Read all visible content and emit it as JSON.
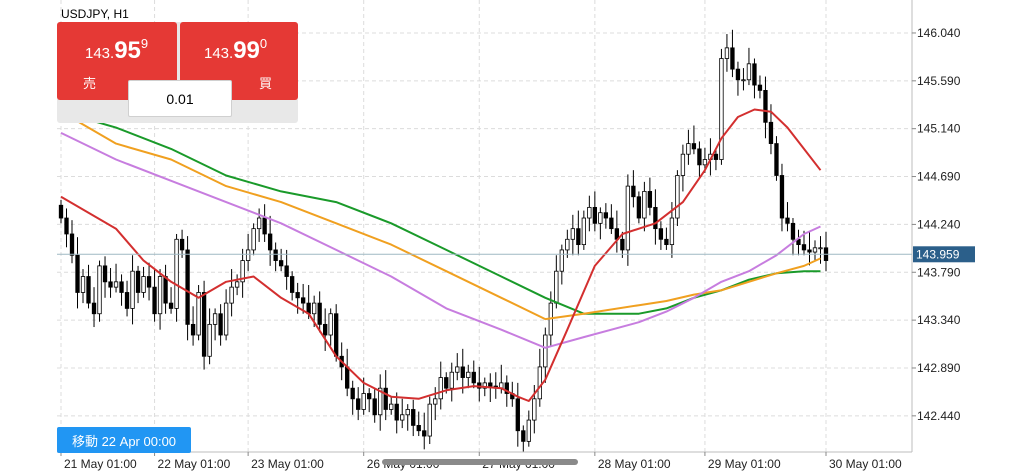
{
  "symbol": "USDJPY, H1",
  "sell": {
    "prefix": "143.",
    "big": "95",
    "sup": "9",
    "label": "売"
  },
  "buy": {
    "prefix": "143.",
    "big": "99",
    "sup": "0",
    "label": "買"
  },
  "volume": "0.01",
  "nav_badge": "移動 22 Apr 00:00",
  "current_price_label": "143.959",
  "colors": {
    "bull_candle": "#ffffff",
    "bear_candle": "#000000",
    "ma_red": "#d32f2f",
    "ma_violet": "#c77ddf",
    "ma_orange": "#f0a020",
    "ma_green": "#1a9a2a",
    "price_line": "#9fb9c4",
    "price_label_bg": "#2b5f8a",
    "sell_buy_bg": "#e53935",
    "badge_bg": "#2196f3"
  },
  "chart_data": {
    "type": "candlestick",
    "ylim": [
      142.1,
      146.35
    ],
    "price_ticks": [
      "146.040",
      "145.590",
      "145.140",
      "144.690",
      "144.240",
      "143.790",
      "143.340",
      "142.890",
      "142.440"
    ],
    "time_ticks": [
      "21 May 01:00",
      "22 May 01:00",
      "23 May 01:00",
      "26 May 01:00",
      "27 May 01:00",
      "28 May 01:00",
      "29 May 01:00",
      "30 May 01:00"
    ],
    "current_price": 143.959,
    "closes": [
      144.3,
      144.15,
      143.95,
      143.6,
      143.75,
      143.5,
      143.4,
      143.85,
      143.7,
      143.65,
      143.7,
      143.6,
      143.45,
      143.8,
      143.6,
      143.75,
      143.65,
      143.4,
      143.75,
      143.5,
      143.45,
      144.1,
      144.0,
      143.3,
      143.2,
      143.6,
      143.0,
      143.3,
      143.4,
      143.2,
      143.5,
      143.65,
      143.7,
      143.9,
      144.0,
      144.2,
      144.3,
      144.15,
      144.0,
      143.9,
      143.85,
      143.75,
      143.6,
      143.55,
      143.5,
      143.4,
      143.5,
      143.3,
      143.2,
      143.4,
      143.0,
      142.9,
      142.7,
      142.6,
      142.5,
      142.65,
      142.6,
      142.45,
      142.7,
      142.5,
      142.55,
      142.4,
      142.45,
      142.5,
      142.35,
      142.3,
      142.25,
      142.55,
      142.6,
      142.8,
      142.7,
      142.85,
      142.9,
      142.8,
      142.85,
      142.75,
      142.7,
      142.75,
      142.72,
      142.7,
      142.75,
      142.65,
      142.6,
      142.3,
      142.2,
      142.4,
      142.6,
      142.9,
      143.2,
      143.5,
      143.8,
      144.0,
      144.1,
      144.2,
      144.05,
      144.3,
      144.4,
      144.25,
      144.35,
      144.3,
      144.2,
      144.1,
      144.0,
      144.6,
      144.5,
      144.3,
      144.55,
      144.4,
      144.2,
      144.1,
      144.05,
      144.3,
      144.7,
      144.9,
      145.0,
      144.95,
      144.8,
      144.85,
      144.9,
      144.85,
      145.8,
      145.9,
      145.7,
      145.6,
      145.6,
      145.75,
      145.55,
      145.5,
      145.2,
      145.0,
      144.7,
      144.3,
      144.25,
      144.1,
      144.05,
      144.0,
      143.98,
      144.02,
      144.02,
      143.9
    ],
    "ma_red": [
      [
        0,
        144.5
      ],
      [
        10,
        144.2
      ],
      [
        15,
        143.9
      ],
      [
        20,
        143.7
      ],
      [
        25,
        143.55
      ],
      [
        30,
        143.7
      ],
      [
        35,
        143.75
      ],
      [
        40,
        143.55
      ],
      [
        45,
        143.4
      ],
      [
        50,
        143.0
      ],
      [
        55,
        142.75
      ],
      [
        60,
        142.62
      ],
      [
        65,
        142.6
      ],
      [
        70,
        142.68
      ],
      [
        75,
        142.72
      ],
      [
        80,
        142.7
      ],
      [
        83,
        142.62
      ],
      [
        85,
        142.58
      ],
      [
        88,
        142.78
      ],
      [
        92,
        143.25
      ],
      [
        97,
        143.85
      ],
      [
        102,
        144.15
      ],
      [
        108,
        144.25
      ],
      [
        113,
        144.45
      ],
      [
        117,
        144.75
      ],
      [
        120,
        145.05
      ],
      [
        123,
        145.25
      ],
      [
        126,
        145.32
      ],
      [
        129,
        145.3
      ],
      [
        132,
        145.15
      ],
      [
        135,
        144.95
      ],
      [
        138,
        144.75
      ]
    ],
    "ma_orange": [
      [
        0,
        145.3
      ],
      [
        10,
        145.0
      ],
      [
        20,
        144.85
      ],
      [
        30,
        144.6
      ],
      [
        40,
        144.45
      ],
      [
        50,
        144.25
      ],
      [
        60,
        144.05
      ],
      [
        70,
        143.8
      ],
      [
        80,
        143.55
      ],
      [
        88,
        143.35
      ],
      [
        95,
        143.4
      ],
      [
        105,
        143.48
      ],
      [
        110,
        143.52
      ],
      [
        115,
        143.58
      ],
      [
        120,
        143.62
      ],
      [
        125,
        143.7
      ],
      [
        130,
        143.78
      ],
      [
        135,
        143.85
      ],
      [
        138,
        143.92
      ]
    ],
    "ma_violet": [
      [
        0,
        145.1
      ],
      [
        10,
        144.85
      ],
      [
        20,
        144.65
      ],
      [
        30,
        144.45
      ],
      [
        40,
        144.25
      ],
      [
        50,
        144.0
      ],
      [
        60,
        143.75
      ],
      [
        70,
        143.45
      ],
      [
        80,
        143.25
      ],
      [
        88,
        143.08
      ],
      [
        95,
        143.18
      ],
      [
        105,
        143.32
      ],
      [
        110,
        143.42
      ],
      [
        115,
        143.55
      ],
      [
        120,
        143.7
      ],
      [
        125,
        143.8
      ],
      [
        130,
        143.95
      ],
      [
        135,
        144.15
      ],
      [
        138,
        144.22
      ]
    ],
    "ma_green": [
      [
        0,
        145.3
      ],
      [
        10,
        145.15
      ],
      [
        20,
        144.95
      ],
      [
        30,
        144.7
      ],
      [
        40,
        144.55
      ],
      [
        50,
        144.45
      ],
      [
        60,
        144.25
      ],
      [
        70,
        144.0
      ],
      [
        80,
        143.75
      ],
      [
        88,
        143.55
      ],
      [
        95,
        143.4
      ],
      [
        105,
        143.4
      ],
      [
        110,
        143.45
      ],
      [
        115,
        143.55
      ],
      [
        120,
        143.62
      ],
      [
        125,
        143.72
      ],
      [
        130,
        143.78
      ],
      [
        135,
        143.8
      ],
      [
        138,
        143.8
      ]
    ]
  }
}
